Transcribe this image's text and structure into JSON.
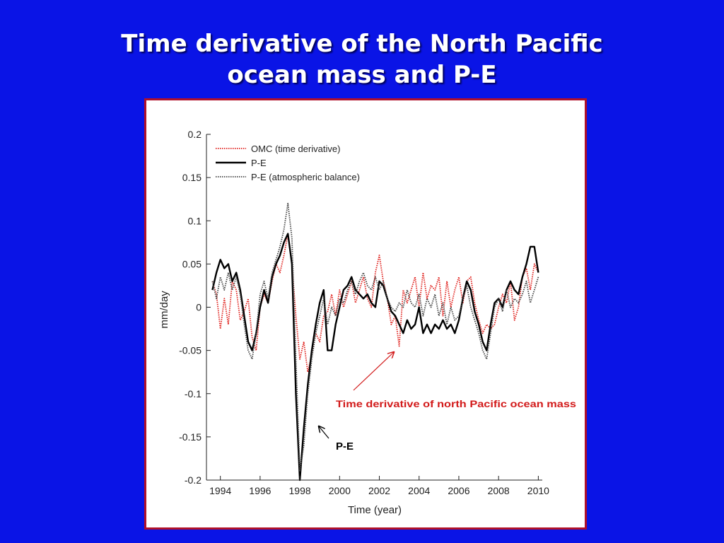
{
  "slide": {
    "title_line1": "Time derivative of the North Pacific",
    "title_line2": "ocean mass and P-E",
    "background_color": "#0a14e6",
    "frame_color": "#b0102a"
  },
  "chart_data": {
    "type": "line",
    "title": "",
    "xlabel": "Time (year)",
    "ylabel": "mm/day",
    "xlim": [
      1993.3,
      2010.2
    ],
    "ylim": [
      -0.2,
      0.2
    ],
    "xticks": [
      1994,
      1996,
      1998,
      2000,
      2002,
      2004,
      2006,
      2008,
      2010
    ],
    "yticks": [
      0.2,
      0.15,
      0.1,
      0.05,
      0,
      -0.05,
      -0.1,
      -0.15,
      -0.2
    ],
    "ytick_labels": [
      "0.2",
      "0.15",
      "0.1",
      "0.05",
      "0",
      "-0.05",
      "-0.1",
      "-0.15",
      "-0.2"
    ],
    "grid": false,
    "legend_position": "top-left",
    "series": [
      {
        "name": "OMC (time derivative)",
        "color": "#e0201c",
        "style": "dotted",
        "x": [
          1993.6,
          1993.8,
          1994.0,
          1994.2,
          1994.4,
          1994.6,
          1994.8,
          1995.0,
          1995.2,
          1995.4,
          1995.6,
          1995.8,
          1996.0,
          1996.2,
          1996.4,
          1996.6,
          1996.8,
          1997.0,
          1997.2,
          1997.4,
          1997.6,
          1997.8,
          1998.0,
          1998.2,
          1998.4,
          1998.6,
          1998.8,
          1999.0,
          1999.2,
          1999.4,
          1999.6,
          1999.8,
          2000.0,
          2000.2,
          2000.4,
          2000.6,
          2000.8,
          2001.0,
          2001.2,
          2001.4,
          2001.6,
          2001.8,
          2002.0,
          2002.2,
          2002.4,
          2002.6,
          2002.8,
          2003.0,
          2003.2,
          2003.4,
          2003.6,
          2003.8,
          2004.0,
          2004.2,
          2004.4,
          2004.6,
          2004.8,
          2005.0,
          2005.2,
          2005.4,
          2005.6,
          2005.8,
          2006.0,
          2006.2,
          2006.4,
          2006.6,
          2006.8,
          2007.0,
          2007.2,
          2007.4,
          2007.6,
          2007.8,
          2008.0,
          2008.2,
          2008.4,
          2008.6,
          2008.8,
          2009.0,
          2009.2,
          2009.4,
          2009.6,
          2009.8,
          2010.0
        ],
        "y": [
          0.03,
          0.015,
          -0.025,
          0.01,
          -0.02,
          0.03,
          0.02,
          -0.015,
          -0.005,
          0.01,
          -0.035,
          -0.05,
          0.0,
          0.015,
          0.005,
          0.03,
          0.05,
          0.04,
          0.06,
          0.085,
          0.05,
          -0.01,
          -0.06,
          -0.04,
          -0.075,
          -0.055,
          -0.03,
          -0.04,
          -0.01,
          -0.005,
          0.015,
          -0.01,
          0.02,
          0.0,
          0.015,
          0.03,
          0.005,
          0.02,
          0.035,
          0.01,
          0.0,
          0.04,
          0.06,
          0.03,
          0.01,
          -0.02,
          -0.01,
          -0.045,
          0.02,
          0.005,
          0.02,
          0.035,
          0.0,
          0.04,
          0.01,
          0.025,
          0.02,
          0.035,
          -0.01,
          0.03,
          0.0,
          0.02,
          0.035,
          0.005,
          0.03,
          0.035,
          0.005,
          -0.015,
          -0.03,
          -0.02,
          -0.025,
          -0.02,
          0.0,
          0.015,
          0.005,
          0.03,
          -0.015,
          0.0,
          0.035,
          0.045,
          0.02,
          0.05,
          0.04
        ]
      },
      {
        "name": "P-E",
        "color": "#000000",
        "style": "solid",
        "x": [
          1993.6,
          1993.8,
          1994.0,
          1994.2,
          1994.4,
          1994.6,
          1994.8,
          1995.0,
          1995.2,
          1995.4,
          1995.6,
          1995.8,
          1996.0,
          1996.2,
          1996.4,
          1996.6,
          1996.8,
          1997.0,
          1997.2,
          1997.4,
          1997.6,
          1997.8,
          1998.0,
          1998.2,
          1998.4,
          1998.6,
          1998.8,
          1999.0,
          1999.2,
          1999.4,
          1999.6,
          1999.8,
          2000.0,
          2000.2,
          2000.4,
          2000.6,
          2000.8,
          2001.0,
          2001.2,
          2001.4,
          2001.6,
          2001.8,
          2002.0,
          2002.2,
          2002.4,
          2002.6,
          2002.8,
          2003.0,
          2003.2,
          2003.4,
          2003.6,
          2003.8,
          2004.0,
          2004.2,
          2004.4,
          2004.6,
          2004.8,
          2005.0,
          2005.2,
          2005.4,
          2005.6,
          2005.8,
          2006.0,
          2006.2,
          2006.4,
          2006.6,
          2006.8,
          2007.0,
          2007.2,
          2007.4,
          2007.6,
          2007.8,
          2008.0,
          2008.2,
          2008.4,
          2008.6,
          2008.8,
          2009.0,
          2009.2,
          2009.4,
          2009.6,
          2009.8,
          2010.0
        ],
        "y": [
          0.02,
          0.04,
          0.055,
          0.045,
          0.05,
          0.03,
          0.04,
          0.02,
          -0.01,
          -0.04,
          -0.05,
          -0.03,
          0.0,
          0.02,
          0.005,
          0.035,
          0.05,
          0.06,
          0.075,
          0.085,
          0.05,
          -0.1,
          -0.2,
          -0.14,
          -0.09,
          -0.05,
          -0.02,
          0.005,
          0.02,
          -0.05,
          -0.05,
          -0.02,
          0.0,
          0.02,
          0.025,
          0.035,
          0.02,
          0.015,
          0.01,
          0.015,
          0.005,
          0.0,
          0.03,
          0.025,
          0.01,
          -0.005,
          -0.01,
          -0.02,
          -0.03,
          -0.015,
          -0.025,
          -0.02,
          0.0,
          -0.03,
          -0.02,
          -0.03,
          -0.02,
          -0.025,
          -0.015,
          -0.025,
          -0.02,
          -0.03,
          -0.015,
          0.01,
          0.03,
          0.02,
          -0.005,
          -0.02,
          -0.04,
          -0.05,
          -0.02,
          0.005,
          0.01,
          0.0,
          0.02,
          0.03,
          0.02,
          0.015,
          0.035,
          0.05,
          0.07,
          0.07,
          0.04
        ]
      },
      {
        "name": "P-E (atmospheric balance)",
        "color": "#444444",
        "style": "dotted",
        "x": [
          1993.6,
          1993.8,
          1994.0,
          1994.2,
          1994.4,
          1994.6,
          1994.8,
          1995.0,
          1995.2,
          1995.4,
          1995.6,
          1995.8,
          1996.0,
          1996.2,
          1996.4,
          1996.6,
          1996.8,
          1997.0,
          1997.2,
          1997.4,
          1997.6,
          1997.8,
          1998.0,
          1998.2,
          1998.4,
          1998.6,
          1998.8,
          1999.0,
          1999.2,
          1999.4,
          1999.6,
          1999.8,
          2000.0,
          2000.2,
          2000.4,
          2000.6,
          2000.8,
          2001.0,
          2001.2,
          2001.4,
          2001.6,
          2001.8,
          2002.0,
          2002.2,
          2002.4,
          2002.6,
          2002.8,
          2003.0,
          2003.2,
          2003.4,
          2003.6,
          2003.8,
          2004.0,
          2004.2,
          2004.4,
          2004.6,
          2004.8,
          2005.0,
          2005.2,
          2005.4,
          2005.6,
          2005.8,
          2006.0,
          2006.2,
          2006.4,
          2006.6,
          2006.8,
          2007.0,
          2007.2,
          2007.4,
          2007.6,
          2007.8,
          2008.0,
          2008.2,
          2008.4,
          2008.6,
          2008.8,
          2009.0,
          2009.2,
          2009.4,
          2009.6,
          2009.8,
          2010.0
        ],
        "y": [
          0.03,
          0.01,
          0.035,
          0.02,
          0.04,
          0.02,
          0.035,
          0.015,
          -0.02,
          -0.05,
          -0.06,
          -0.03,
          0.015,
          0.03,
          0.01,
          0.04,
          0.055,
          0.07,
          0.09,
          0.12,
          0.08,
          -0.06,
          -0.19,
          -0.16,
          -0.1,
          -0.06,
          -0.03,
          -0.01,
          0.01,
          -0.02,
          0.0,
          -0.01,
          0.01,
          0.005,
          0.02,
          0.03,
          0.015,
          0.03,
          0.04,
          0.025,
          0.02,
          0.035,
          0.02,
          0.03,
          0.01,
          0.0,
          -0.005,
          0.005,
          0.0,
          0.02,
          0.005,
          0.0,
          0.015,
          -0.01,
          0.01,
          0.0,
          0.015,
          -0.01,
          0.005,
          -0.02,
          0.0,
          -0.015,
          -0.01,
          0.01,
          0.025,
          0.0,
          -0.015,
          -0.03,
          -0.05,
          -0.06,
          -0.03,
          0.0,
          0.01,
          -0.005,
          0.02,
          0.0,
          0.01,
          0.005,
          0.015,
          0.03,
          0.005,
          0.02,
          0.035
        ]
      }
    ],
    "annotations": [
      {
        "text": "Time derivative of north Pacific ocean mass",
        "color": "#d21a1a",
        "points_to": "OMC (time derivative)"
      },
      {
        "text": "P-E",
        "color": "#000000",
        "points_to": "P-E"
      }
    ]
  }
}
